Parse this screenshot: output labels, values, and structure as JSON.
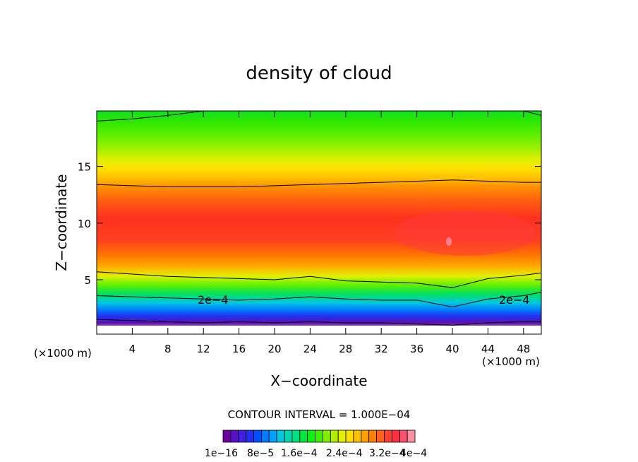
{
  "chart_data": {
    "type": "heatmap",
    "title": "density of cloud",
    "xlabel": "X−coordinate",
    "ylabel": "Z−coordinate",
    "x_unit_left": "(×1000 m)",
    "x_unit_right": "(×1000 m)",
    "xlim": [
      0,
      50
    ],
    "ylim": [
      0.2,
      19.9
    ],
    "x_ticks": [
      4,
      8,
      12,
      16,
      20,
      24,
      28,
      32,
      36,
      40,
      44,
      48
    ],
    "y_ticks": [
      5,
      10,
      15
    ],
    "contour_interval_text": "CONTOUR INTERVAL = 1.000E−04",
    "contour_label": "2e−4",
    "colorbar_labels": [
      "1e−16",
      "8e−5",
      "1.6e−4",
      "2.4e−4",
      "3.2e−4",
      "4e−4"
    ],
    "colorbar_colors": [
      "#6e00a0",
      "#5a10c8",
      "#4020e0",
      "#2030f0",
      "#0050ff",
      "#0078ff",
      "#00a0ff",
      "#00c8e0",
      "#00d8b0",
      "#00e080",
      "#00e840",
      "#10f010",
      "#40f000",
      "#80f000",
      "#b0f000",
      "#e0f000",
      "#ffe000",
      "#ffc000",
      "#ffa000",
      "#ff8000",
      "#ff6020",
      "#ff4030",
      "#ff3040",
      "#ff5070",
      "#ff90a0"
    ],
    "series": [
      {
        "x": [
          0,
          4,
          8,
          12,
          16,
          20,
          24,
          28,
          32,
          36,
          40,
          44,
          48,
          50
        ],
        "values": [
          1.5,
          1.4,
          1.3,
          1.2,
          1.3,
          1.2,
          1.3,
          1.2,
          1.2,
          1.1,
          1.0,
          1.2,
          1.3,
          1.3
        ]
      },
      {
        "x": [
          0,
          4,
          8,
          12,
          16,
          20,
          24,
          28,
          32,
          36,
          40,
          44,
          48,
          50
        ],
        "values": [
          3.6,
          3.5,
          3.4,
          3.3,
          3.2,
          3.3,
          3.5,
          3.3,
          3.2,
          3.2,
          2.6,
          3.3,
          3.6,
          3.9
        ]
      },
      {
        "x": [
          0,
          4,
          8,
          12,
          16,
          20,
          24,
          28,
          32,
          36,
          40,
          44,
          48,
          50
        ],
        "values": [
          5.7,
          5.5,
          5.3,
          5.2,
          5.1,
          5.0,
          5.3,
          4.9,
          4.8,
          4.7,
          4.3,
          5.1,
          5.4,
          5.6
        ]
      },
      {
        "x": [
          0,
          4,
          8,
          12,
          16,
          20,
          24,
          28,
          32,
          36,
          40,
          44,
          48,
          50
        ],
        "values": [
          13.4,
          13.3,
          13.2,
          13.2,
          13.2,
          13.3,
          13.4,
          13.5,
          13.6,
          13.7,
          13.8,
          13.7,
          13.6,
          13.6
        ]
      },
      {
        "x": [
          0,
          4,
          8,
          12,
          16,
          20,
          24,
          28,
          32,
          36,
          40,
          44,
          48,
          50
        ],
        "values": [
          19.0,
          19.2,
          19.5,
          19.9,
          19.9,
          19.9,
          19.9,
          19.9,
          19.9,
          19.9,
          19.9,
          19.9,
          19.9,
          19.5
        ]
      }
    ]
  }
}
